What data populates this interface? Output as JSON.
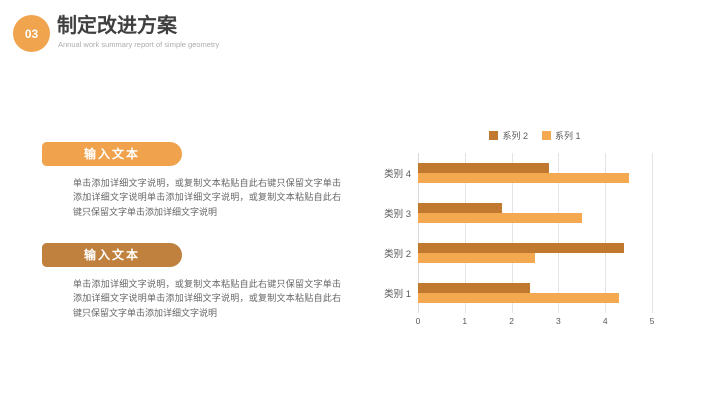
{
  "slide": {
    "badge": "03",
    "title": "制定改进方案",
    "subtitle": "Annual work summary report of simple geometry"
  },
  "left_blocks": [
    {
      "button_label": "输入文本",
      "body_text": "单击添加详细文字说明，或复制文本粘贴自此右键只保留文字单击添加详细文字说明单击添加详细文字说明，或复制文本粘贴自此右键只保留文字单击添加详细文字说明"
    },
    {
      "button_label": "输入文本",
      "body_text": "单击添加详细文字说明，或复制文本粘贴自此右键只保留文字单击添加详细文字说明单击添加详细文字说明，或复制文本粘贴自此右键只保留文字单击添加详细文字说明"
    }
  ],
  "colors": {
    "accent_orange": "#F0A24C",
    "accent_brown": "#C0813F",
    "badge_orange": "#F0A44E",
    "title_gray": "#3F3F3F",
    "body_gray": "#666666",
    "gridline_gray": "#E4E4E4"
  },
  "chart_data": {
    "type": "bar",
    "orientation": "horizontal",
    "title": "",
    "categories": [
      "类别 1",
      "类别 2",
      "类别 3",
      "类别 4"
    ],
    "category_order_top_to_bottom": [
      "类别 4",
      "类别 3",
      "类别 2",
      "类别 1"
    ],
    "series": [
      {
        "name": "系列 2",
        "color": "#C1792F",
        "values": [
          2.4,
          4.4,
          1.8,
          2.8
        ]
      },
      {
        "name": "系列 1",
        "color": "#F4A850",
        "values": [
          4.3,
          2.5,
          3.5,
          4.5
        ]
      }
    ],
    "xlim": [
      0,
      5
    ],
    "x_ticks": [
      0,
      1,
      2,
      3,
      4,
      5
    ],
    "legend_position": "top",
    "grid": "vertical-only"
  }
}
